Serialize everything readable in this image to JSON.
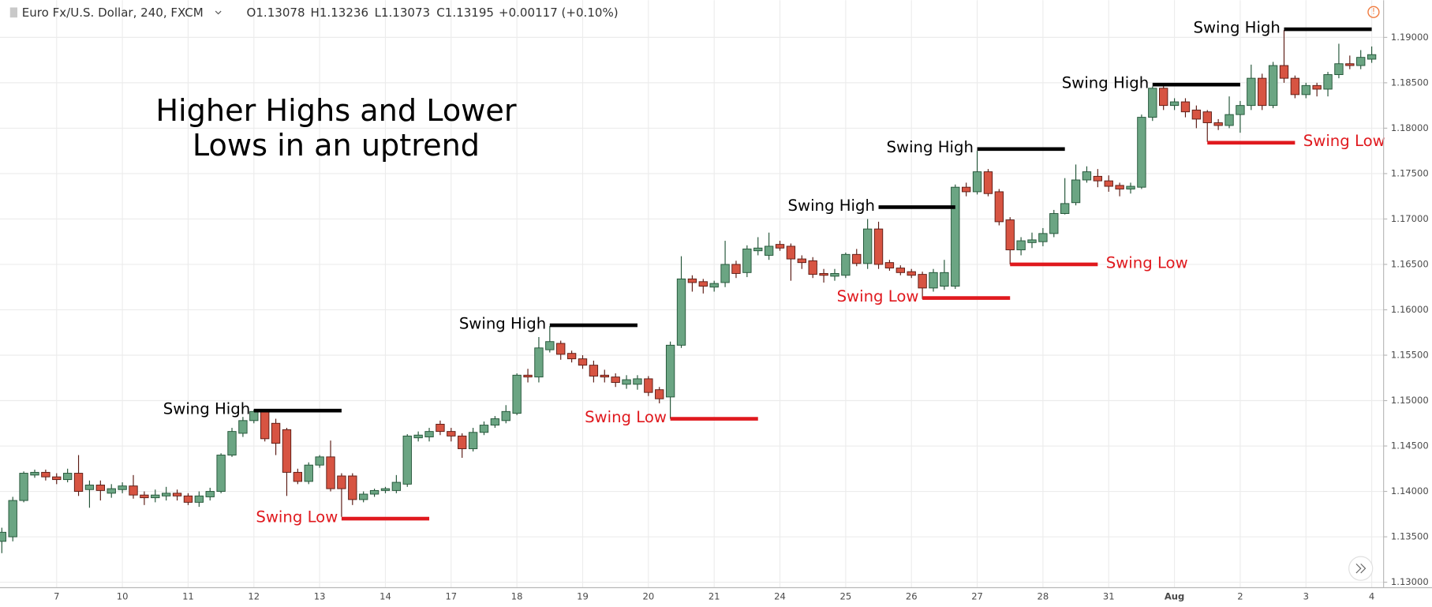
{
  "header": {
    "symbol": "Euro Fx/U.S. Dollar, 240, FXCM",
    "open": "O1.13078",
    "high": "H1.13236",
    "low": "L1.13073",
    "close": "C1.13195",
    "change": "+0.00117 (+0.10%)"
  },
  "chart_data": {
    "type": "candlestick",
    "title_lines": [
      "Higher Highs and Lower",
      "Lows in an uptrend"
    ],
    "categories": [
      null,
      null,
      null,
      null,
      null,
      "7",
      null,
      null,
      null,
      null,
      null,
      "10",
      null,
      null,
      null,
      null,
      null,
      "11",
      null,
      null,
      null,
      null,
      null,
      "12",
      null,
      null,
      null,
      null,
      null,
      "13",
      null,
      null,
      null,
      null,
      null,
      "14",
      null,
      null,
      null,
      null,
      null,
      "17",
      null,
      null,
      null,
      null,
      null,
      "18",
      null,
      null,
      null,
      null,
      null,
      "19",
      null,
      null,
      null,
      null,
      null,
      "20",
      null,
      null,
      null,
      null,
      null,
      "21",
      null,
      null,
      null,
      null,
      null,
      "24",
      null,
      null,
      null,
      null,
      null,
      "25",
      null,
      null,
      null,
      null,
      null,
      "26",
      null,
      null,
      null,
      null,
      null,
      "27",
      null,
      null,
      null,
      null,
      null,
      "28",
      null,
      null,
      null,
      null,
      null,
      "31",
      null,
      null,
      null,
      null,
      null,
      "Aug",
      null,
      null,
      null,
      null,
      null,
      "2",
      null,
      null,
      null,
      null,
      null,
      "3",
      null,
      null,
      null,
      null,
      null,
      "4"
    ],
    "open": [
      1.1345,
      1.135,
      1.139,
      1.1418,
      1.1421,
      1.1416,
      1.1413,
      1.142,
      1.1402,
      1.1407,
      1.1398,
      1.1402,
      1.1406,
      1.1396,
      1.1393,
      1.1395,
      1.1398,
      1.1395,
      1.1388,
      1.1394,
      1.14,
      1.144,
      1.1464,
      1.1478,
      1.1488,
      1.1475,
      1.1468,
      1.1421,
      1.1411,
      1.1429,
      1.1438,
      1.1417,
      1.1417,
      1.1391,
      1.1397,
      1.1401,
      1.1401,
      1.1408,
      1.1459,
      1.146,
      1.1474,
      1.1466,
      1.1461,
      1.1447,
      1.1465,
      1.1473,
      1.1478,
      1.1486,
      1.1528,
      1.1526,
      1.1556,
      1.1563,
      1.1552,
      1.1546,
      1.1539,
      1.1528,
      1.1526,
      1.1518,
      1.1518,
      1.1524,
      1.1512,
      1.1504,
      1.1561,
      1.1634,
      1.1631,
      1.1625,
      1.163,
      1.165,
      1.1641,
      1.1665,
      1.166,
      1.1672,
      1.167,
      1.1656,
      1.1654,
      1.164,
      1.1637,
      1.1638,
      1.1661,
      1.1651,
      1.1689,
      1.1652,
      1.1646,
      1.1642,
      1.1639,
      1.1624,
      1.1626,
      1.1626,
      1.1735,
      1.173,
      1.1752,
      1.173,
      1.1699,
      1.1666,
      1.1674,
      1.1675,
      1.1684,
      1.1706,
      1.1718,
      1.1743,
      1.1747,
      1.1742,
      1.1737,
      1.1733,
      1.1735,
      1.1812,
      1.1844,
      1.1825,
      1.1829,
      1.182,
      1.1818,
      1.1806,
      1.1803,
      1.1815,
      1.1825,
      1.1855,
      1.1825,
      1.1869,
      1.1855,
      1.1837,
      1.1847,
      1.1843,
      1.1859,
      1.1871,
      1.1869,
      1.1876
    ],
    "high": [
      1.136,
      1.1394,
      1.1422,
      1.1424,
      1.1424,
      1.142,
      1.1425,
      1.144,
      1.1412,
      1.1412,
      1.1408,
      1.141,
      1.1418,
      1.14,
      1.1402,
      1.1405,
      1.1402,
      1.1398,
      1.14,
      1.1404,
      1.1442,
      1.147,
      1.1482,
      1.149,
      1.149,
      1.148,
      1.147,
      1.1425,
      1.1432,
      1.144,
      1.1456,
      1.142,
      1.142,
      1.14,
      1.1403,
      1.1405,
      1.1418,
      1.1463,
      1.1466,
      1.147,
      1.1478,
      1.147,
      1.1464,
      1.147,
      1.1477,
      1.1483,
      1.1495,
      1.153,
      1.1535,
      1.157,
      1.1582,
      1.1566,
      1.1555,
      1.155,
      1.1544,
      1.1534,
      1.153,
      1.1528,
      1.1528,
      1.1527,
      1.1515,
      1.1565,
      1.1659,
      1.1638,
      1.1634,
      1.1632,
      1.1676,
      1.1654,
      1.1671,
      1.168,
      1.1685,
      1.1676,
      1.1673,
      1.166,
      1.1658,
      1.1645,
      1.1645,
      1.1663,
      1.1667,
      1.17,
      1.1697,
      1.1655,
      1.1649,
      1.1645,
      1.1642,
      1.1645,
      1.1655,
      1.1738,
      1.174,
      1.1775,
      1.1755,
      1.1733,
      1.1702,
      1.168,
      1.1685,
      1.169,
      1.171,
      1.1745,
      1.176,
      1.1758,
      1.1755,
      1.1748,
      1.174,
      1.174,
      1.1815,
      1.1846,
      1.1847,
      1.1833,
      1.1833,
      1.1825,
      1.182,
      1.181,
      1.1835,
      1.183,
      1.187,
      1.186,
      1.1873,
      1.1908,
      1.1858,
      1.185,
      1.185,
      1.1862,
      1.1893,
      1.188,
      1.1886,
      1.189
    ],
    "low": [
      1.1332,
      1.1345,
      1.1388,
      1.1415,
      1.1412,
      1.1408,
      1.141,
      1.1395,
      1.1382,
      1.139,
      1.1393,
      1.1398,
      1.1392,
      1.1385,
      1.1388,
      1.139,
      1.139,
      1.1385,
      1.1383,
      1.139,
      1.1398,
      1.1438,
      1.146,
      1.1475,
      1.1455,
      1.144,
      1.1395,
      1.1408,
      1.1408,
      1.1426,
      1.14,
      1.1372,
      1.1385,
      1.1388,
      1.1394,
      1.1398,
      1.1398,
      1.1405,
      1.1455,
      1.1455,
      1.1462,
      1.1455,
      1.1437,
      1.1444,
      1.1462,
      1.147,
      1.1475,
      1.1484,
      1.152,
      1.152,
      1.1553,
      1.1545,
      1.1542,
      1.1535,
      1.152,
      1.152,
      1.1515,
      1.1513,
      1.1512,
      1.1505,
      1.1497,
      1.148,
      1.1558,
      1.162,
      1.1618,
      1.162,
      1.1625,
      1.1635,
      1.1636,
      1.166,
      1.1655,
      1.1665,
      1.1632,
      1.1645,
      1.1635,
      1.163,
      1.1632,
      1.1635,
      1.1648,
      1.1645,
      1.1645,
      1.1643,
      1.1638,
      1.1635,
      1.1612,
      1.162,
      1.1622,
      1.1623,
      1.1725,
      1.1727,
      1.1725,
      1.1693,
      1.165,
      1.166,
      1.1668,
      1.167,
      1.168,
      1.1705,
      1.1715,
      1.174,
      1.1735,
      1.173,
      1.1725,
      1.1728,
      1.1733,
      1.1808,
      1.182,
      1.182,
      1.1812,
      1.18,
      1.1785,
      1.1798,
      1.18,
      1.1795,
      1.182,
      1.182,
      1.1822,
      1.185,
      1.1833,
      1.1833,
      1.1835,
      1.1835,
      1.1855,
      1.1865,
      1.1865,
      1.1872
    ],
    "close": [
      1.1355,
      1.139,
      1.142,
      1.1421,
      1.1416,
      1.1413,
      1.142,
      1.14,
      1.1407,
      1.1401,
      1.1403,
      1.1406,
      1.1396,
      1.1393,
      1.1396,
      1.1398,
      1.1395,
      1.1388,
      1.1395,
      1.14,
      1.144,
      1.1466,
      1.1478,
      1.1488,
      1.1458,
      1.1453,
      1.1421,
      1.1411,
      1.1429,
      1.1438,
      1.1403,
      1.1403,
      1.1391,
      1.1397,
      1.1401,
      1.1403,
      1.141,
      1.1461,
      1.1462,
      1.1466,
      1.1466,
      1.1461,
      1.1447,
      1.1465,
      1.1473,
      1.148,
      1.1488,
      1.1528,
      1.1526,
      1.1558,
      1.1565,
      1.1551,
      1.1546,
      1.1539,
      1.1527,
      1.1526,
      1.152,
      1.1523,
      1.1524,
      1.1509,
      1.1502,
      1.1561,
      1.1634,
      1.163,
      1.1626,
      1.1629,
      1.165,
      1.164,
      1.1667,
      1.1668,
      1.167,
      1.1668,
      1.1656,
      1.1652,
      1.1639,
      1.1638,
      1.164,
      1.1661,
      1.1651,
      1.1689,
      1.165,
      1.1646,
      1.1641,
      1.1638,
      1.1624,
      1.1641,
      1.1641,
      1.1735,
      1.173,
      1.1752,
      1.1728,
      1.1697,
      1.1666,
      1.1676,
      1.1677,
      1.1684,
      1.1706,
      1.1717,
      1.1743,
      1.1752,
      1.1742,
      1.1736,
      1.1733,
      1.1736,
      1.1812,
      1.1844,
      1.1825,
      1.1829,
      1.1818,
      1.181,
      1.1806,
      1.1803,
      1.1815,
      1.1825,
      1.1855,
      1.1825,
      1.1869,
      1.1855,
      1.1837,
      1.1847,
      1.1843,
      1.1859,
      1.1871,
      1.1869,
      1.1878,
      1.1881
    ],
    "up_color": "#6ba583",
    "down_color": "#d75442",
    "ylim": [
      1.1294,
      1.1941
    ],
    "yticks": [
      {
        "value": 1.13,
        "label": "1.13000"
      },
      {
        "value": 1.135,
        "label": "1.13500"
      },
      {
        "value": 1.14,
        "label": "1.14000"
      },
      {
        "value": 1.145,
        "label": "1.14500"
      },
      {
        "value": 1.15,
        "label": "1.15000"
      },
      {
        "value": 1.155,
        "label": "1.15500"
      },
      {
        "value": 1.16,
        "label": "1.16000"
      },
      {
        "value": 1.165,
        "label": "1.16500"
      },
      {
        "value": 1.17,
        "label": "1.17000"
      },
      {
        "value": 1.175,
        "label": "1.17500"
      },
      {
        "value": 1.18,
        "label": "1.18000"
      },
      {
        "value": 1.185,
        "label": "1.18500"
      },
      {
        "value": 1.19,
        "label": "1.19000"
      }
    ],
    "grid": true,
    "annotations": [
      {
        "text": "Swing High",
        "y": 1.1489,
        "x": [
          23,
          31
        ],
        "color": "#000000",
        "label_side": "left"
      },
      {
        "text": "Swing Low",
        "y": 1.137,
        "x": [
          31,
          39
        ],
        "color": "#e0191e",
        "label_side": "left"
      },
      {
        "text": "Swing High",
        "y": 1.1583,
        "x": [
          50,
          58
        ],
        "color": "#000000",
        "label_side": "left"
      },
      {
        "text": "Swing Low",
        "y": 1.148,
        "x": [
          61,
          69
        ],
        "color": "#e0191e",
        "label_side": "left"
      },
      {
        "text": "Swing High",
        "y": 1.1713,
        "x": [
          80,
          87
        ],
        "color": "#000000",
        "label_side": "left"
      },
      {
        "text": "Swing Low",
        "y": 1.1613,
        "x": [
          84,
          92
        ],
        "color": "#e0191e",
        "label_side": "left"
      },
      {
        "text": "Swing High",
        "y": 1.1777,
        "x": [
          89,
          97
        ],
        "color": "#000000",
        "label_side": "left"
      },
      {
        "text": "Swing Low",
        "y": 1.165,
        "x": [
          92,
          100
        ],
        "color": "#e0191e",
        "label_side": "right"
      },
      {
        "text": "Swing High",
        "y": 1.1848,
        "x": [
          105,
          113
        ],
        "color": "#000000",
        "label_side": "left"
      },
      {
        "text": "Swing Low",
        "y": 1.1784,
        "x": [
          110,
          118
        ],
        "color": "#e0191e",
        "label_side": "right"
      },
      {
        "text": "Swing High",
        "y": 1.1909,
        "x": [
          117,
          125
        ],
        "color": "#000000",
        "label_side": "left"
      }
    ]
  }
}
